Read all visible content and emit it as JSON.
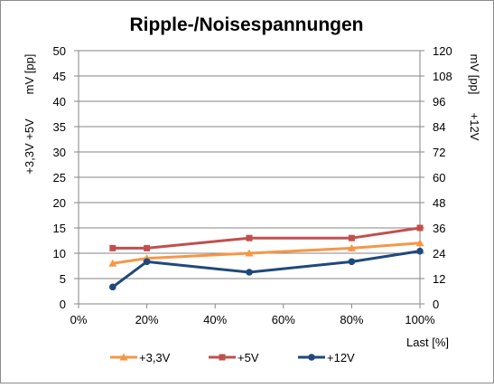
{
  "chart_data": {
    "type": "line",
    "title": "Ripple-/Noisespannungen",
    "xlabel": "Last [%]",
    "ylabel_left_unit": "mV [pp]",
    "ylabel_left_series": "+3,3V  +5V",
    "ylabel_right_unit": "mV [pp]",
    "ylabel_right_series": "+12V",
    "xlim": [
      0,
      100
    ],
    "ylim_left": [
      0,
      50
    ],
    "ylim_right": [
      0,
      120
    ],
    "x_ticks": [
      "0%",
      "20%",
      "40%",
      "60%",
      "80%",
      "100%"
    ],
    "y_left_ticks": [
      "0",
      "5",
      "10",
      "15",
      "20",
      "25",
      "30",
      "35",
      "40",
      "45",
      "50"
    ],
    "y_right_ticks": [
      "0",
      "12",
      "24",
      "36",
      "48",
      "60",
      "72",
      "84",
      "96",
      "108",
      "120"
    ],
    "grid": true,
    "legend_position": "bottom",
    "series": [
      {
        "name": "+3,3V",
        "axis": "left",
        "color": "#F79646",
        "marker": "triangle",
        "x": [
          10,
          20,
          50,
          80,
          100
        ],
        "values": [
          8,
          9,
          10,
          11,
          12
        ]
      },
      {
        "name": "+5V",
        "axis": "left",
        "color": "#C0504D",
        "marker": "square",
        "x": [
          10,
          20,
          50,
          80,
          100
        ],
        "values": [
          11,
          11,
          13,
          13,
          15
        ]
      },
      {
        "name": "+12V",
        "axis": "right",
        "color": "#1F497D",
        "marker": "circle",
        "x": [
          10,
          20,
          50,
          80,
          100
        ],
        "values": [
          8,
          20,
          15,
          20,
          25
        ]
      }
    ]
  }
}
